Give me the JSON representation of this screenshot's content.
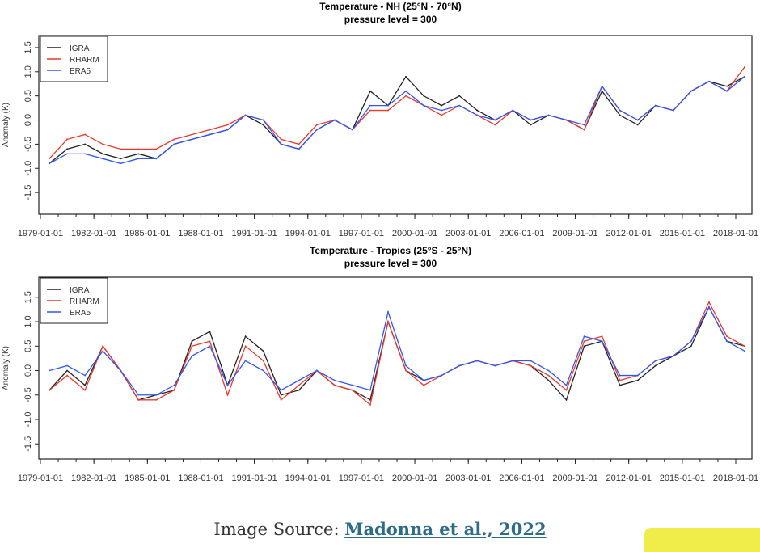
{
  "chart_data": [
    {
      "type": "line",
      "title": "Temperature - NH (25°N - 70°N)",
      "subtitle": "pressure level = 300",
      "xlabel": "",
      "ylabel": "Anomaly (K)",
      "ylim": [
        -1.95,
        1.75
      ],
      "yticks": [
        "-1.5",
        "-1.0",
        "-0.5",
        "0.0",
        "0.5",
        "1.0",
        "1.5"
      ],
      "xticks": [
        "1979-01-01",
        "1982-01-01",
        "1985-01-01",
        "1988-01-01",
        "1991-01-01",
        "1994-01-01",
        "1997-01-01",
        "2000-01-01",
        "2003-01-01",
        "2006-01-01",
        "2009-01-01",
        "2012-01-01",
        "2015-01-01",
        "2018-01-01"
      ],
      "x": [
        1979,
        1980,
        1981,
        1982,
        1983,
        1984,
        1985,
        1986,
        1987,
        1988,
        1989,
        1990,
        1991,
        1992,
        1993,
        1994,
        1995,
        1996,
        1997,
        1998,
        1999,
        2000,
        2001,
        2002,
        2003,
        2004,
        2005,
        2006,
        2007,
        2008,
        2009,
        2010,
        2011,
        2012,
        2013,
        2014,
        2015,
        2016,
        2017,
        2018
      ],
      "legend": "top-left",
      "series": [
        {
          "name": "IGRA",
          "color": "#222222",
          "values": [
            -0.9,
            -0.6,
            -0.5,
            -0.7,
            -0.8,
            -0.7,
            -0.8,
            -0.5,
            -0.4,
            -0.3,
            -0.2,
            0.1,
            -0.1,
            -0.5,
            -0.6,
            -0.2,
            0.0,
            -0.2,
            0.6,
            0.3,
            0.9,
            0.5,
            0.3,
            0.5,
            0.2,
            0.0,
            0.2,
            -0.1,
            0.1,
            0.0,
            -0.2,
            0.6,
            0.1,
            -0.1,
            0.3,
            0.2,
            0.6,
            0.8,
            0.7,
            0.9
          ]
        },
        {
          "name": "RHARM",
          "color": "#e8382c",
          "values": [
            -0.8,
            -0.4,
            -0.3,
            -0.5,
            -0.6,
            -0.6,
            -0.6,
            -0.4,
            -0.3,
            -0.2,
            -0.1,
            0.1,
            0.0,
            -0.4,
            -0.5,
            -0.1,
            0.0,
            -0.2,
            0.2,
            0.2,
            0.5,
            0.3,
            0.1,
            0.3,
            0.1,
            -0.1,
            0.2,
            0.0,
            0.1,
            0.0,
            -0.2,
            0.7,
            0.2,
            0.0,
            0.3,
            0.2,
            0.6,
            0.8,
            0.6,
            1.1
          ]
        },
        {
          "name": "ERA5",
          "color": "#3355ee",
          "values": [
            -0.9,
            -0.7,
            -0.7,
            -0.8,
            -0.9,
            -0.8,
            -0.8,
            -0.5,
            -0.4,
            -0.3,
            -0.2,
            0.1,
            0.0,
            -0.5,
            -0.6,
            -0.2,
            0.0,
            -0.2,
            0.3,
            0.3,
            0.6,
            0.3,
            0.2,
            0.3,
            0.1,
            0.0,
            0.2,
            0.0,
            0.1,
            0.0,
            -0.1,
            0.7,
            0.2,
            0.0,
            0.3,
            0.2,
            0.6,
            0.8,
            0.6,
            0.9
          ]
        }
      ]
    },
    {
      "type": "line",
      "title": "Temperature - Tropics (25°S - 25°N)",
      "subtitle": "pressure level = 300",
      "xlabel": "",
      "ylabel": "Anomaly (K)",
      "ylim": [
        -1.81,
        1.91
      ],
      "yticks": [
        "-1.5",
        "-1.0",
        "-0.5",
        "0.0",
        "0.5",
        "1.0",
        "1.5"
      ],
      "xticks": [
        "1979-01-01",
        "1982-01-01",
        "1985-01-01",
        "1988-01-01",
        "1991-01-01",
        "1994-01-01",
        "1997-01-01",
        "2000-01-01",
        "2003-01-01",
        "2006-01-01",
        "2009-01-01",
        "2012-01-01",
        "2015-01-01",
        "2018-01-01"
      ],
      "x": [
        1979,
        1980,
        1981,
        1982,
        1983,
        1984,
        1985,
        1986,
        1987,
        1988,
        1989,
        1990,
        1991,
        1992,
        1993,
        1994,
        1995,
        1996,
        1997,
        1998,
        1999,
        2000,
        2001,
        2002,
        2003,
        2004,
        2005,
        2006,
        2007,
        2008,
        2009,
        2010,
        2011,
        2012,
        2013,
        2014,
        2015,
        2016,
        2017,
        2018
      ],
      "legend": "top-left",
      "series": [
        {
          "name": "IGRA",
          "color": "#222222",
          "values": [
            -0.4,
            0.0,
            -0.3,
            0.5,
            0.0,
            -0.6,
            -0.5,
            -0.4,
            0.6,
            0.8,
            -0.3,
            0.7,
            0.4,
            -0.5,
            -0.4,
            0.0,
            -0.3,
            -0.4,
            -0.6,
            1.0,
            0.0,
            -0.2,
            -0.1,
            0.1,
            0.2,
            0.1,
            0.2,
            0.1,
            -0.2,
            -0.6,
            0.5,
            0.6,
            -0.3,
            -0.2,
            0.1,
            0.3,
            0.5,
            1.3,
            0.6,
            0.5
          ]
        },
        {
          "name": "RHARM",
          "color": "#e8382c",
          "values": [
            -0.4,
            -0.1,
            -0.4,
            0.5,
            0.0,
            -0.6,
            -0.6,
            -0.4,
            0.5,
            0.6,
            -0.5,
            0.5,
            0.2,
            -0.6,
            -0.3,
            0.0,
            -0.3,
            -0.4,
            -0.7,
            1.0,
            0.0,
            -0.3,
            -0.1,
            0.1,
            0.2,
            0.1,
            0.2,
            0.1,
            -0.1,
            -0.4,
            0.6,
            0.7,
            -0.2,
            -0.1,
            0.2,
            0.3,
            0.6,
            1.4,
            0.7,
            0.5
          ]
        },
        {
          "name": "ERA5",
          "color": "#3355ee",
          "values": [
            0.0,
            0.1,
            -0.1,
            0.4,
            0.0,
            -0.5,
            -0.5,
            -0.3,
            0.3,
            0.5,
            -0.3,
            0.2,
            0.0,
            -0.4,
            -0.2,
            0.0,
            -0.2,
            -0.3,
            -0.4,
            1.2,
            0.1,
            -0.2,
            -0.1,
            0.1,
            0.2,
            0.1,
            0.2,
            0.2,
            0.0,
            -0.3,
            0.7,
            0.6,
            -0.1,
            -0.1,
            0.2,
            0.3,
            0.6,
            1.3,
            0.6,
            0.4
          ]
        }
      ]
    }
  ],
  "caption": {
    "prefix": "Image Source: ",
    "link": "Madonna et al., 2022"
  }
}
